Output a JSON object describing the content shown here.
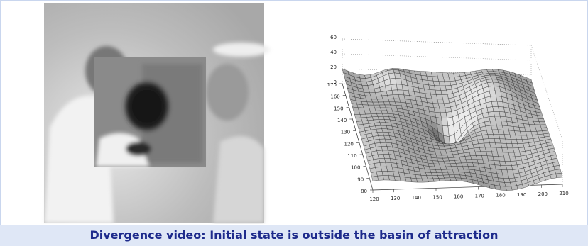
{
  "caption": "Divergence video: Initial state is outside the basin of attraction",
  "plot": {
    "z_ticks": [
      60,
      40,
      20,
      0
    ],
    "y_ticks": [
      170,
      160,
      150,
      140,
      130,
      120,
      110,
      100,
      90,
      80
    ],
    "x_ticks": [
      120,
      130,
      140,
      150,
      160,
      170,
      180,
      190,
      200,
      210
    ]
  }
}
